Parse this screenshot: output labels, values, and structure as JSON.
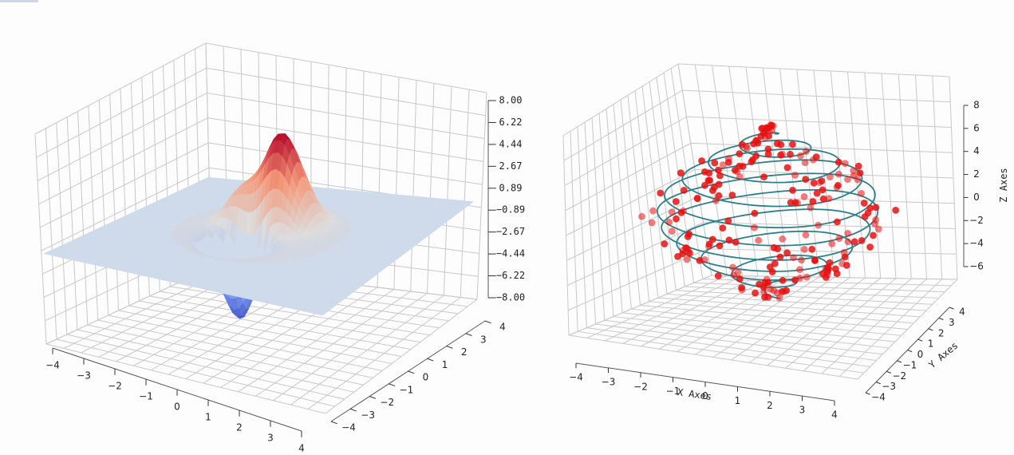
{
  "figure": {
    "background": "#fdfdfd"
  },
  "chart_data": [
    {
      "type": "surface3d",
      "title": "",
      "x_ticks": [
        "−4",
        "−3",
        "−2",
        "−1",
        "0",
        "1",
        "2",
        "3",
        "4"
      ],
      "y_ticks": [
        "−4",
        "−3",
        "−2",
        "−1",
        "0",
        "1",
        "2",
        "3",
        "4"
      ],
      "z_ticks": [
        "8.00",
        "6.22",
        "4.44",
        "2.67",
        "0.89",
        "−0.89",
        "−2.67",
        "−4.44",
        "−6.22",
        "−8.00"
      ],
      "xlim": [
        -4,
        4
      ],
      "ylim": [
        -4,
        4
      ],
      "zlim": [
        -8,
        8
      ],
      "colormap": "coolwarm",
      "flat_offset_color": "#cfdbeb",
      "peak_z": 7.6,
      "trough_z": -6.6
    },
    {
      "type": "scatter3d+line3d",
      "title": "",
      "xlabel": "X Axes",
      "ylabel": "Y Axes",
      "zlabel": "Z Axes",
      "x_ticks": [
        "−4",
        "−3",
        "−2",
        "−1",
        "0",
        "1",
        "2",
        "3",
        "4"
      ],
      "y_ticks": [
        "−4",
        "−3",
        "−2",
        "−1",
        "0",
        "1",
        "2",
        "3",
        "4"
      ],
      "z_ticks": [
        "8",
        "6",
        "4",
        "2",
        "0",
        "−2",
        "−4",
        "−6"
      ],
      "xlim": [
        -4.5,
        4.5
      ],
      "ylim": [
        -4.5,
        4.5
      ],
      "zlim": [
        -7.5,
        9
      ],
      "scatter_color": "#e81010",
      "line_color": "#2f7f8a",
      "helix": {
        "z_range": [
          -6,
          6.6
        ],
        "max_radius": 3.3,
        "turns": 10
      }
    }
  ]
}
